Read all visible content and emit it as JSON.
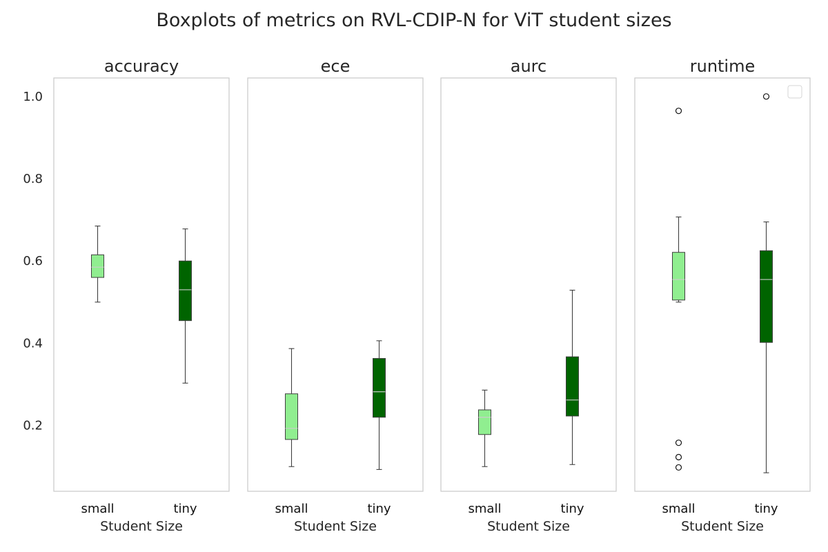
{
  "chart_data": {
    "title": "Boxplots of metrics on RVL-CDIP-N for ViT student sizes",
    "type": "boxplot",
    "shared_y": true,
    "ylim": [
      0.04,
      1.045
    ],
    "yticks": [
      "0.2",
      "0.4",
      "0.6",
      "0.8",
      "1.0"
    ],
    "ytick_values": [
      0.2,
      0.4,
      0.6,
      0.8,
      1.0
    ],
    "grid": false,
    "legend": "top-right (empty)",
    "categories": [
      "small",
      "tiny"
    ],
    "colors": {
      "small": "#90ee90",
      "tiny": "#006400",
      "whisker": "#3f3f3f",
      "median": "#cccccc",
      "frame": "#cccccc"
    },
    "panels": [
      {
        "title": "accuracy",
        "xlabel": "Student Size",
        "boxes": [
          {
            "category": "small",
            "whislo": 0.5,
            "q1": 0.56,
            "med": 0.585,
            "q3": 0.615,
            "whishi": 0.685,
            "fliers": []
          },
          {
            "category": "tiny",
            "whislo": 0.303,
            "q1": 0.455,
            "med": 0.53,
            "q3": 0.6,
            "whishi": 0.678,
            "fliers": []
          }
        ]
      },
      {
        "title": "ece",
        "xlabel": "Student Size",
        "boxes": [
          {
            "category": "small",
            "whislo": 0.1,
            "q1": 0.166,
            "med": 0.193,
            "q3": 0.277,
            "whishi": 0.387,
            "fliers": []
          },
          {
            "category": "tiny",
            "whislo": 0.093,
            "q1": 0.22,
            "med": 0.282,
            "q3": 0.363,
            "whishi": 0.406,
            "fliers": []
          }
        ]
      },
      {
        "title": "aurc",
        "xlabel": "Student Size",
        "boxes": [
          {
            "category": "small",
            "whislo": 0.1,
            "q1": 0.178,
            "med": 0.22,
            "q3": 0.238,
            "whishi": 0.286,
            "fliers": []
          },
          {
            "category": "tiny",
            "whislo": 0.105,
            "q1": 0.223,
            "med": 0.262,
            "q3": 0.367,
            "whishi": 0.529,
            "fliers": []
          }
        ]
      },
      {
        "title": "runtime",
        "xlabel": "Student Size",
        "boxes": [
          {
            "category": "small",
            "whislo": 0.5,
            "q1": 0.505,
            "med": 0.555,
            "q3": 0.621,
            "whishi": 0.707,
            "fliers": [
              0.965,
              0.158,
              0.123,
              0.098
            ]
          },
          {
            "category": "tiny",
            "whislo": 0.085,
            "q1": 0.402,
            "med": 0.555,
            "q3": 0.625,
            "whishi": 0.695,
            "fliers": [
              1.0
            ]
          }
        ]
      }
    ]
  }
}
